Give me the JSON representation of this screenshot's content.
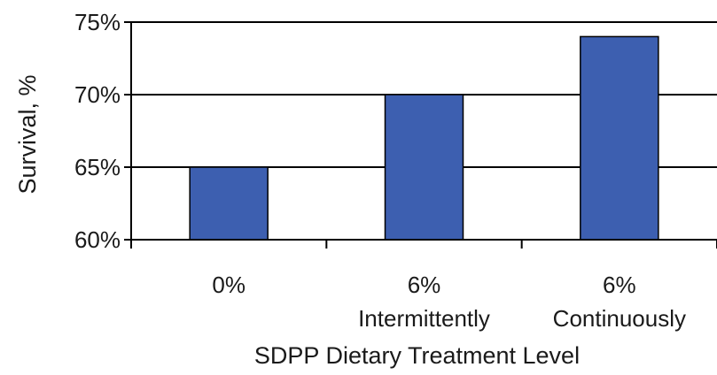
{
  "chart_data": {
    "type": "bar",
    "categories": [
      {
        "line1": "0%",
        "line2": ""
      },
      {
        "line1": "6%",
        "line2": "Intermittently"
      },
      {
        "line1": "6%",
        "line2": "Continuously"
      }
    ],
    "values": [
      65,
      70,
      74
    ],
    "ylim": [
      60,
      75
    ],
    "yticks": [
      60,
      65,
      70,
      75
    ],
    "ytick_labels": [
      "60%",
      "65%",
      "70%",
      "75%"
    ],
    "xlabel": "SDPP Dietary Treatment Level",
    "ylabel": "Survival, %",
    "grid": true,
    "legend": "none",
    "bar_color": "#3d5fb0",
    "bar_edge_color": "#000000",
    "grid_color": "#000000"
  }
}
